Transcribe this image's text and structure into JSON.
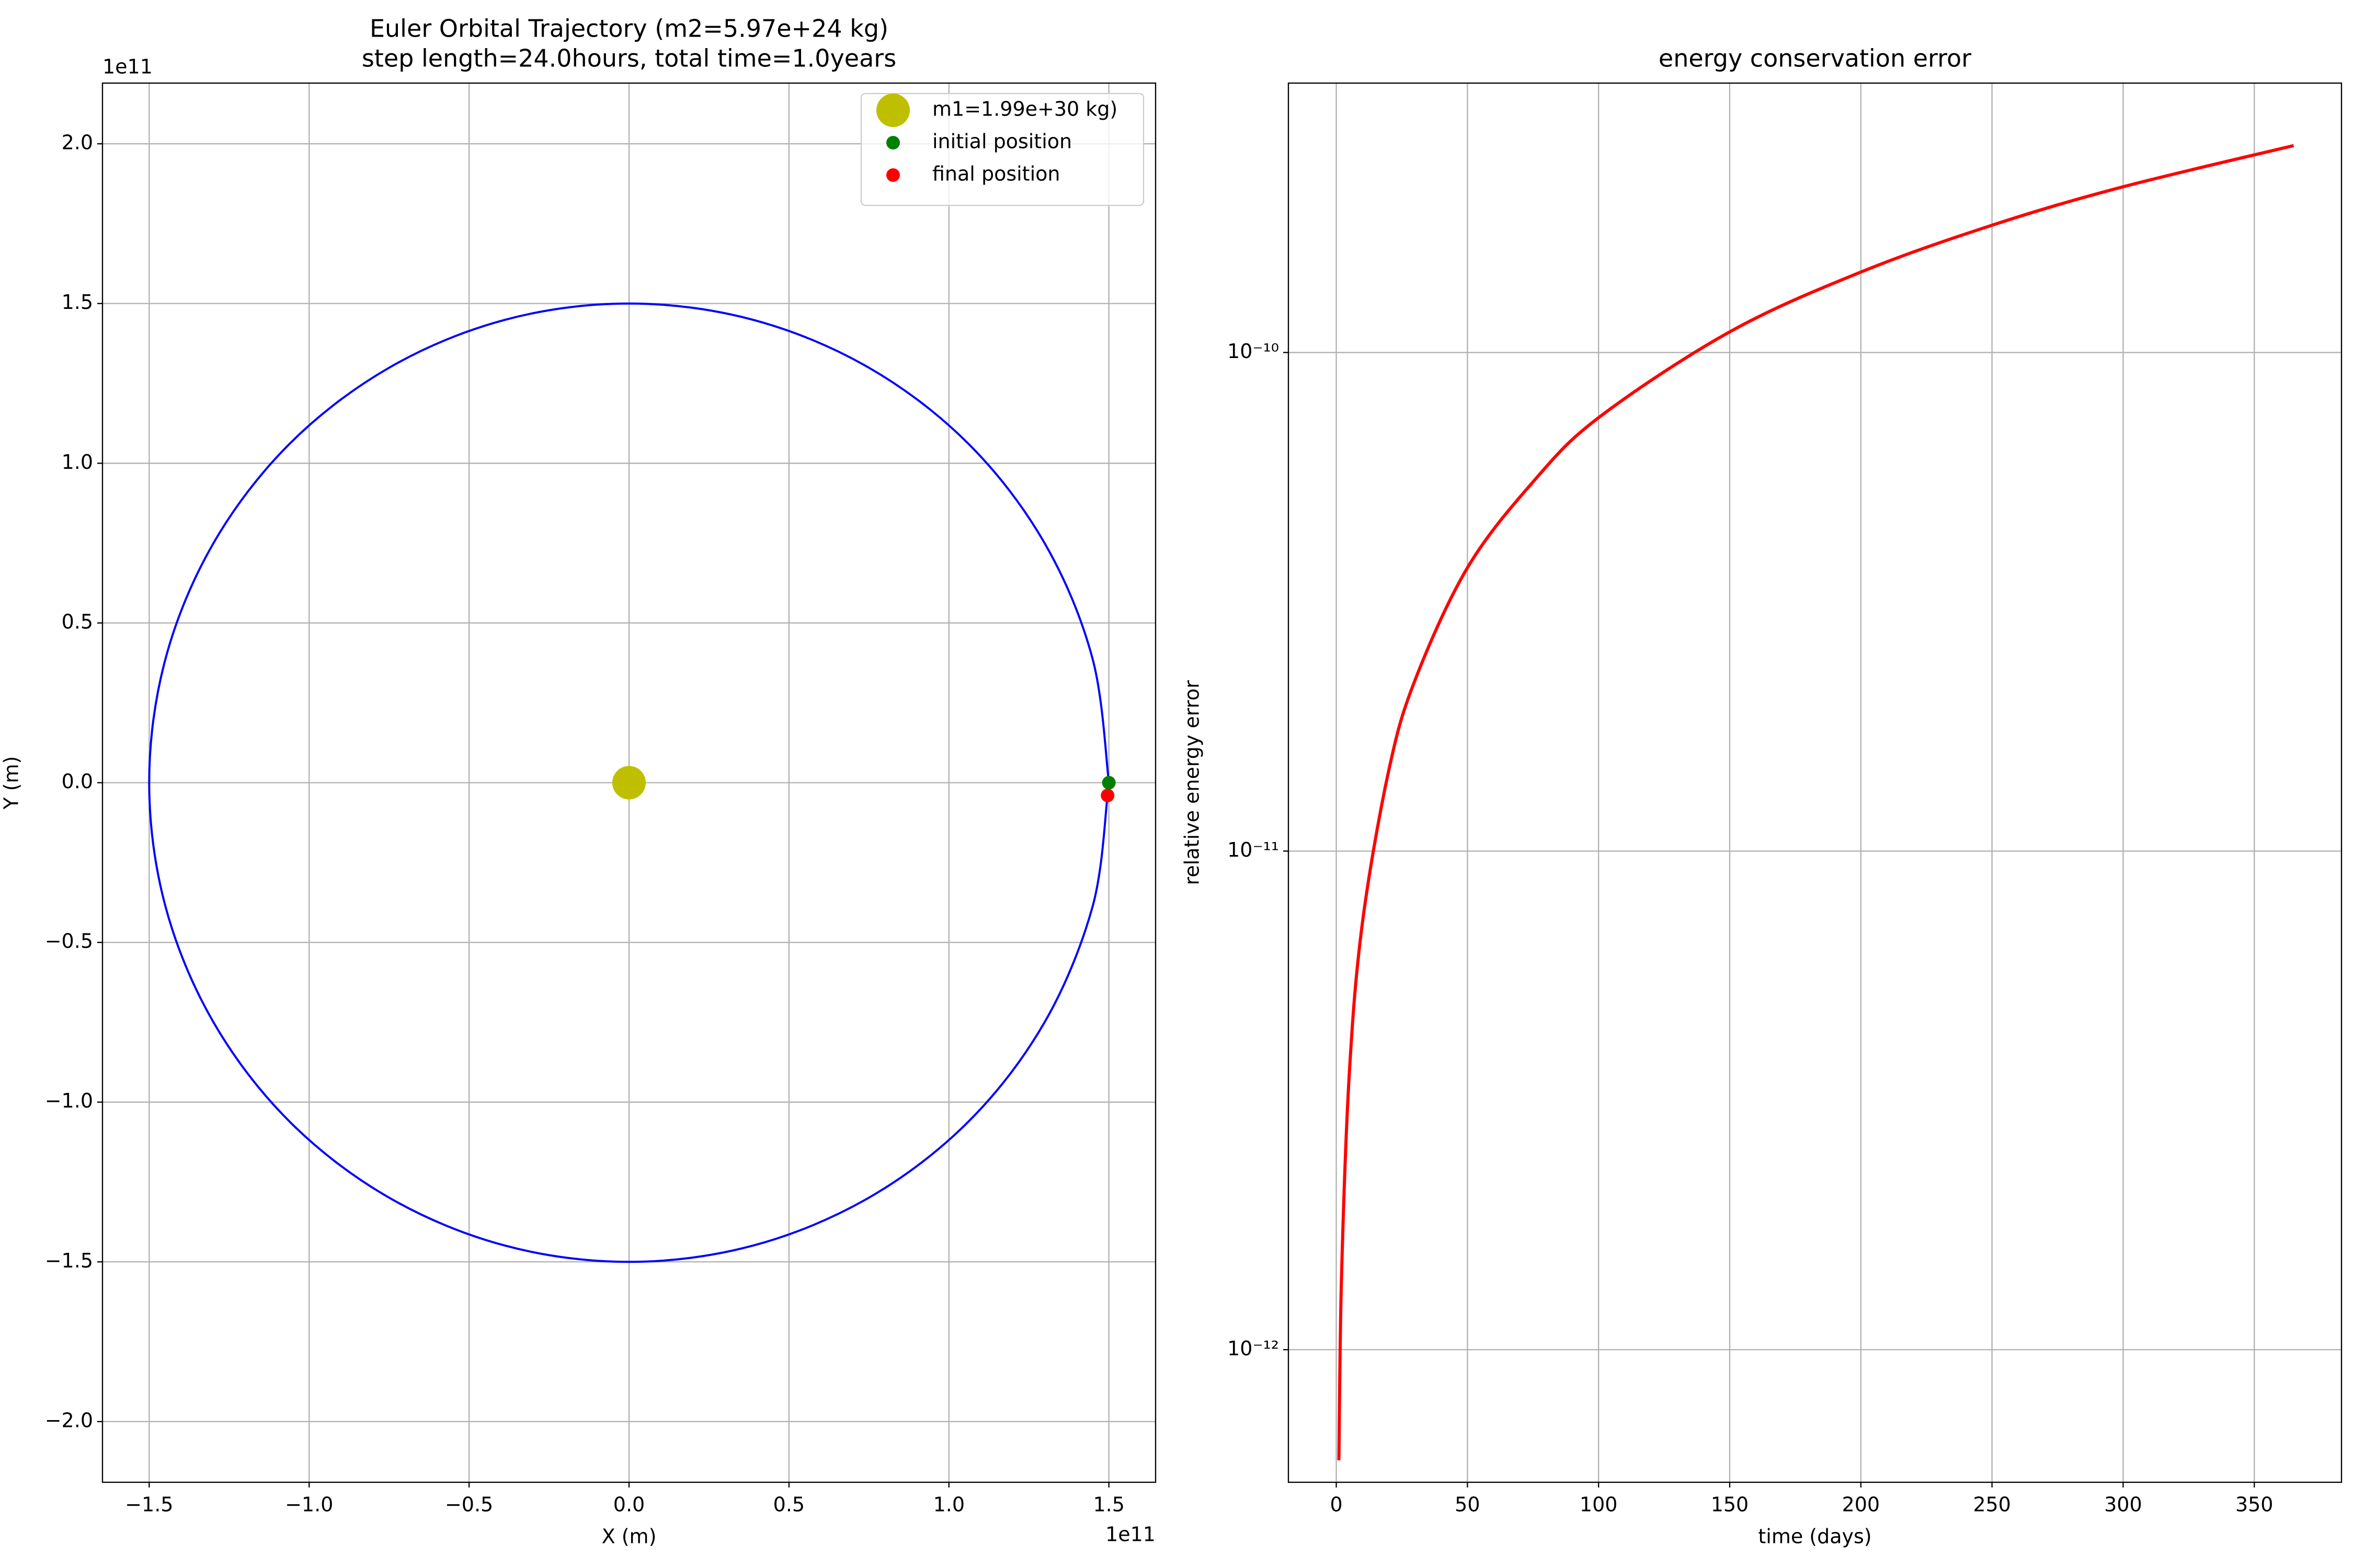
{
  "chart_data": [
    {
      "type": "line",
      "title": "Euler Orbital Trajectory (m2=5.97e+24 kg)",
      "subtitle": "step length=24.0hours, total time=1.0years",
      "x_label": "X (m)",
      "y_label": "Y (m)",
      "x_offset_label": "1e11",
      "y_offset_label": "1e11",
      "xlim": [
        -1.646,
        1.646
      ],
      "ylim": [
        -2.19,
        2.19
      ],
      "xticks": [
        {
          "value": -1.5,
          "label": "−1.5"
        },
        {
          "value": -1.0,
          "label": "−1.0"
        },
        {
          "value": -0.5,
          "label": "−0.5"
        },
        {
          "value": 0,
          "label": "0.0"
        },
        {
          "value": 0.5,
          "label": "0.5"
        },
        {
          "value": 1.0,
          "label": "1.0"
        },
        {
          "value": 1.5,
          "label": "1.5"
        }
      ],
      "yticks": [
        {
          "value": -2.0,
          "label": "−2.0"
        },
        {
          "value": -1.5,
          "label": "−1.5"
        },
        {
          "value": -1.0,
          "label": "−1.0"
        },
        {
          "value": -0.5,
          "label": "−0.5"
        },
        {
          "value": 0,
          "label": "0.0"
        },
        {
          "value": 0.5,
          "label": "0.5"
        },
        {
          "value": 1.0,
          "label": "1.0"
        },
        {
          "value": 1.5,
          "label": "1.5"
        },
        {
          "value": 2.0,
          "label": "2.0"
        }
      ],
      "grid": true,
      "legend": "upper-right",
      "series": [
        {
          "color": "#0000ff",
          "marker": "none",
          "x": [
            1.5,
            1.449,
            1.299,
            1.061,
            0.75,
            0.388,
            0,
            -0.388,
            -0.75,
            -1.061,
            -1.299,
            -1.449,
            -1.5,
            -1.449,
            -1.299,
            -1.061,
            -0.75,
            -0.388,
            0,
            0.388,
            0.75,
            1.061,
            1.299,
            1.449,
            1.496
          ],
          "y": [
            0,
            0.388,
            0.75,
            1.061,
            1.299,
            1.449,
            1.5,
            1.449,
            1.299,
            1.061,
            0.75,
            0.388,
            0,
            -0.388,
            -0.75,
            -1.061,
            -1.299,
            -1.449,
            -1.5,
            -1.449,
            -1.299,
            -1.061,
            -0.75,
            -0.388,
            -0.04
          ]
        },
        {
          "name": "m1=1.99e+30 kg)",
          "color": "#bfbf00",
          "marker": "big-dot",
          "x": [
            0
          ],
          "y": [
            0
          ]
        },
        {
          "name": "initial position",
          "color": "#008000",
          "marker": "dot",
          "x": [
            1.5
          ],
          "y": [
            0
          ]
        },
        {
          "name": "final position",
          "color": "#ff0000",
          "marker": "dot",
          "x": [
            1.496
          ],
          "y": [
            -0.04
          ]
        }
      ]
    },
    {
      "type": "line",
      "title": "energy conservation error",
      "x_label": "time (days)",
      "y_label": "relative energy error",
      "log_y": true,
      "xlim": [
        -18.25,
        383.25
      ],
      "ylim": [
        5.42e-13,
        3.47e-10
      ],
      "xticks": [
        0,
        50,
        100,
        150,
        200,
        250,
        300,
        350
      ],
      "yticks": [
        {
          "value": 1e-12,
          "label": "10⁻¹²"
        },
        {
          "value": 1e-11,
          "label": "10⁻¹¹"
        },
        {
          "value": 1e-10,
          "label": "10⁻¹⁰"
        }
      ],
      "grid": true,
      "series": [
        {
          "color": "#ff0000",
          "marker": "none",
          "x": [
            1,
            2,
            5,
            10,
            20,
            30,
            50,
            75,
            100,
            150,
            200,
            250,
            300,
            365
          ],
          "y": [
            6e-13,
            1.4e-12,
            3.6e-12,
            7.2e-12,
            1.45e-11,
            2.2e-11,
            3.7e-11,
            5.5e-11,
            7.4e-11,
            1.1e-10,
            1.45e-10,
            1.8e-10,
            2.15e-10,
            2.6e-10
          ]
        }
      ]
    }
  ]
}
